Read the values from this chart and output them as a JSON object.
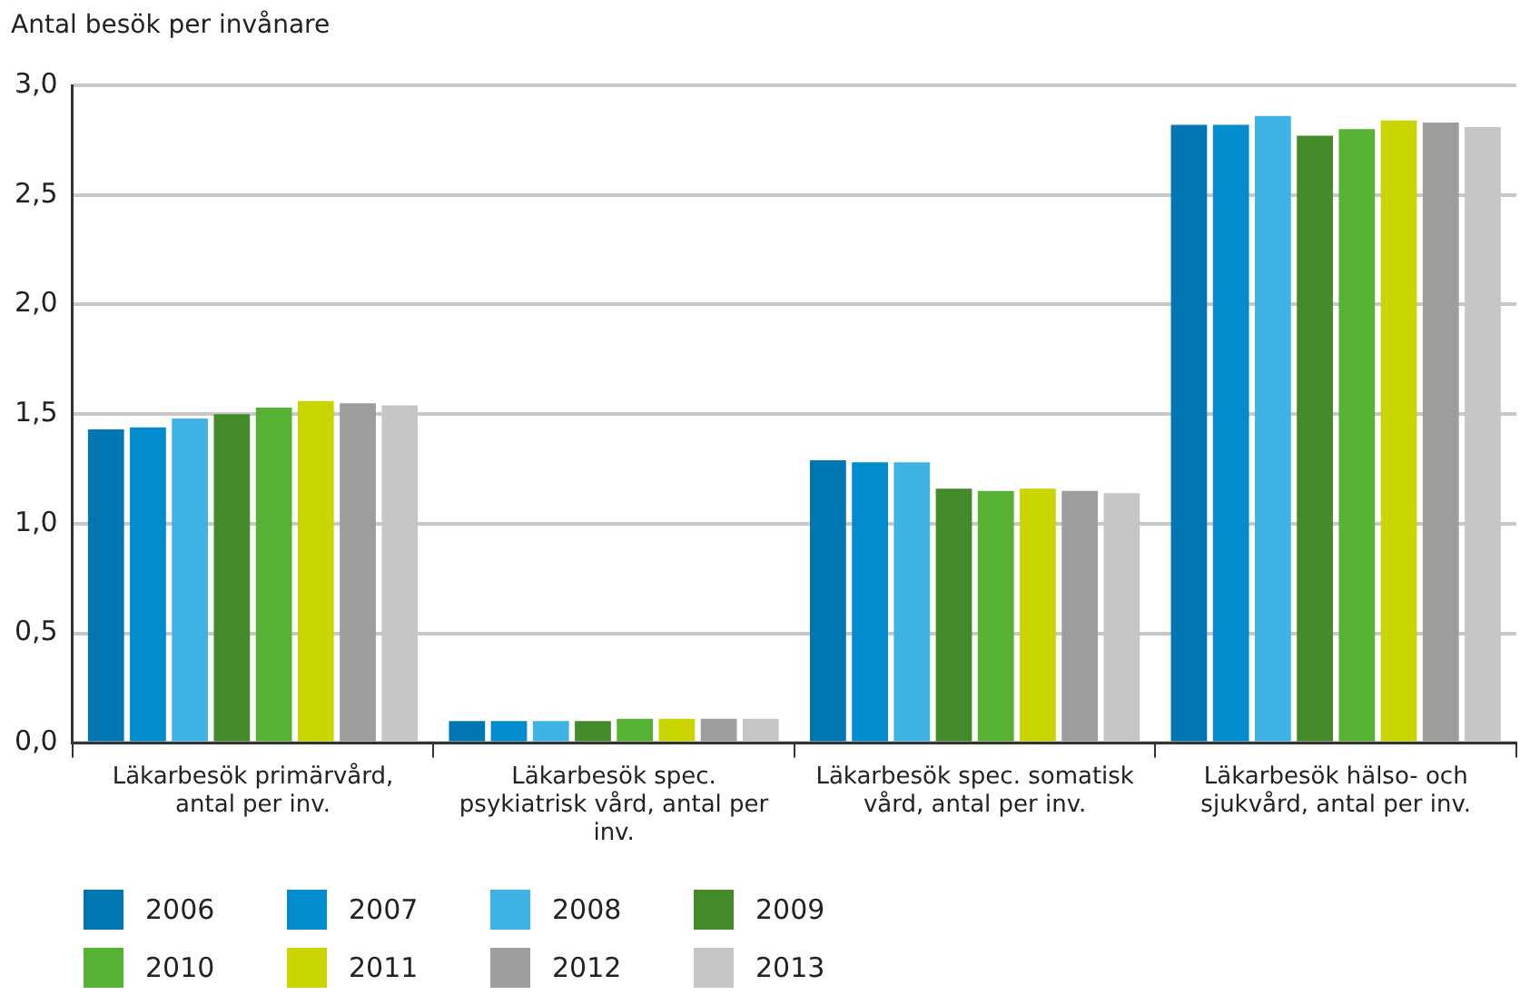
{
  "chart_data": {
    "type": "bar",
    "ylabel": "Antal besök per invånare",
    "categories": [
      "Läkarbesök primärvård, antal per inv.",
      "Läkarbesök spec. psykiatrisk vård, antal per inv.",
      "Läkarbesök spec. somatisk vård, antal per inv.",
      "Läkarbesök hälso- och sjukvård, antal per inv."
    ],
    "series": [
      {
        "name": "2006",
        "color": "#0077b0",
        "values": [
          1.43,
          0.1,
          1.29,
          2.82
        ]
      },
      {
        "name": "2007",
        "color": "#008ccf",
        "values": [
          1.44,
          0.1,
          1.28,
          2.82
        ]
      },
      {
        "name": "2008",
        "color": "#40b3e5",
        "values": [
          1.48,
          0.1,
          1.28,
          2.86
        ]
      },
      {
        "name": "2009",
        "color": "#438a2b",
        "values": [
          1.5,
          0.1,
          1.16,
          2.77
        ]
      },
      {
        "name": "2010",
        "color": "#57b133",
        "values": [
          1.53,
          0.11,
          1.15,
          2.8
        ]
      },
      {
        "name": "2011",
        "color": "#cbd500",
        "values": [
          1.56,
          0.11,
          1.16,
          2.84
        ]
      },
      {
        "name": "2012",
        "color": "#9d9d9b",
        "values": [
          1.55,
          0.11,
          1.15,
          2.83
        ]
      },
      {
        "name": "2013",
        "color": "#c6c6c6",
        "values": [
          1.54,
          0.11,
          1.14,
          2.81
        ]
      }
    ],
    "ylim": [
      0,
      3
    ],
    "yticks": [
      {
        "value": 0,
        "label": "0,0"
      },
      {
        "value": 0.5,
        "label": "0,5"
      },
      {
        "value": 1,
        "label": "1,0"
      },
      {
        "value": 1.5,
        "label": "1,5"
      },
      {
        "value": 2,
        "label": "2,0"
      },
      {
        "value": 2.5,
        "label": "2,5"
      },
      {
        "value": 3,
        "label": "3,0"
      }
    ],
    "grid": "y",
    "legend": "bottom"
  }
}
